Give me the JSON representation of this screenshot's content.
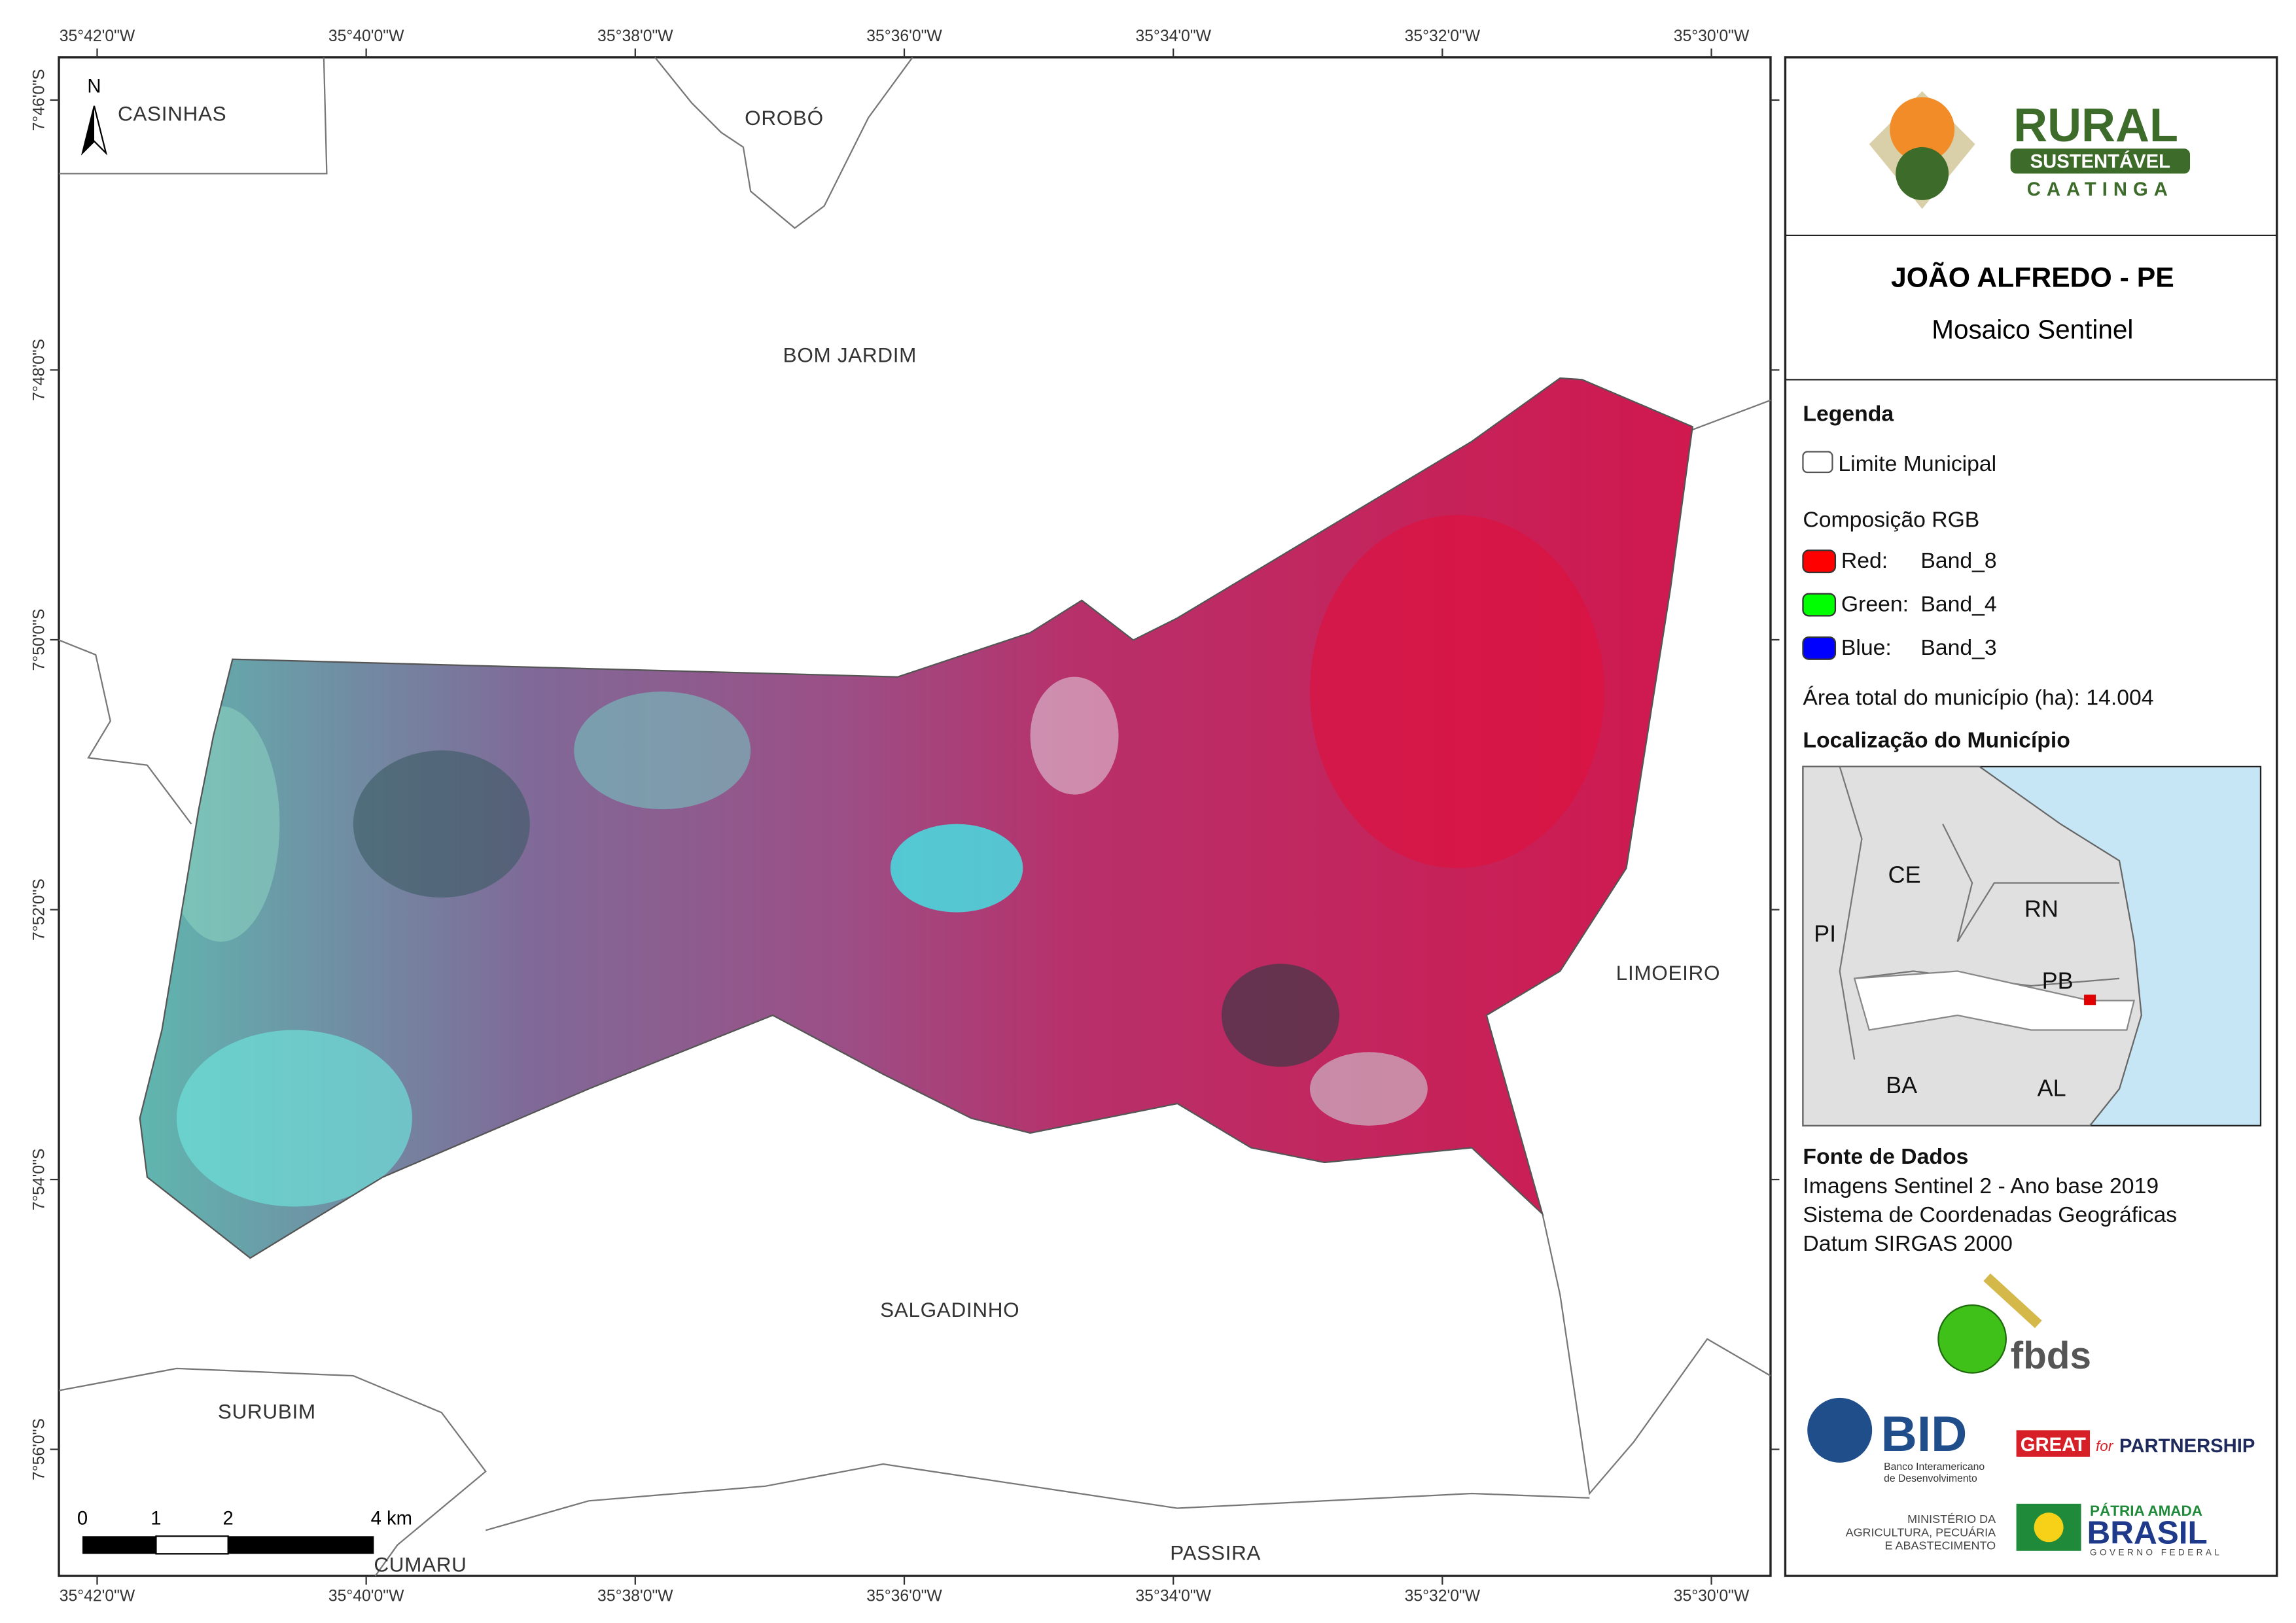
{
  "title": "JOÃO ALFREDO - PE",
  "subtitle": "Mosaico Sentinel",
  "logo": {
    "rural": "RURAL",
    "sustentavel": "SUSTENTÁVEL",
    "caatinga": "CAATINGA"
  },
  "map": {
    "x_labels": [
      "35°42'0\"W",
      "35°40'0\"W",
      "35°38'0\"W",
      "35°36'0\"W",
      "35°34'0\"W",
      "35°32'0\"W",
      "35°30'0\"W"
    ],
    "y_labels": [
      "7°46'0\"S",
      "7°48'0\"S",
      "7°50'0\"S",
      "7°52'0\"S",
      "7°54'0\"S",
      "7°56'0\"S"
    ],
    "north": "N",
    "places": [
      "CASINHAS",
      "OROBÓ",
      "BOM JARDIM",
      "LIMOEIRO",
      "SALGADINHO",
      "SURUBIM",
      "CUMARU",
      "PASSIRA"
    ],
    "scale_labels": [
      "0",
      "1",
      "2",
      "4 km"
    ]
  },
  "legend": {
    "title": "Legenda",
    "boundary": "Limite Municipal",
    "composition": "Composição RGB",
    "bands": [
      {
        "name": "Red:",
        "band": "Band_8",
        "color": "#ff0000"
      },
      {
        "name": "Green:",
        "band": "Band_4",
        "color": "#00ff00"
      },
      {
        "name": "Blue:",
        "band": "Band_3",
        "color": "#0000ff"
      }
    ],
    "area": "Área total do município (ha): 14.004",
    "location_title": "Localização do Município",
    "states": [
      "CE",
      "RN",
      "PI",
      "PB",
      "BA",
      "AL"
    ]
  },
  "sources": {
    "title": "Fonte de Dados",
    "lines": [
      "Imagens Sentinel 2 - Ano base 2019",
      "Sistema de Coordenadas Geográficas",
      "Datum SIRGAS 2000"
    ]
  },
  "partners": {
    "fbds": "fbds",
    "bid": "BID",
    "bid_sub": [
      "Banco Interamericano",
      "de Desenvolvimento"
    ],
    "great": "GREAT",
    "great_for": "for",
    "great_partnership": "PARTNERSHIP",
    "ministry": [
      "MINISTÉRIO DA",
      "AGRICULTURA, PECUÁRIA",
      "E ABASTECIMENTO"
    ],
    "brasil_top": "PÁTRIA AMADA",
    "brasil": "BRASIL",
    "gov": "GOVERNO FEDERAL"
  }
}
